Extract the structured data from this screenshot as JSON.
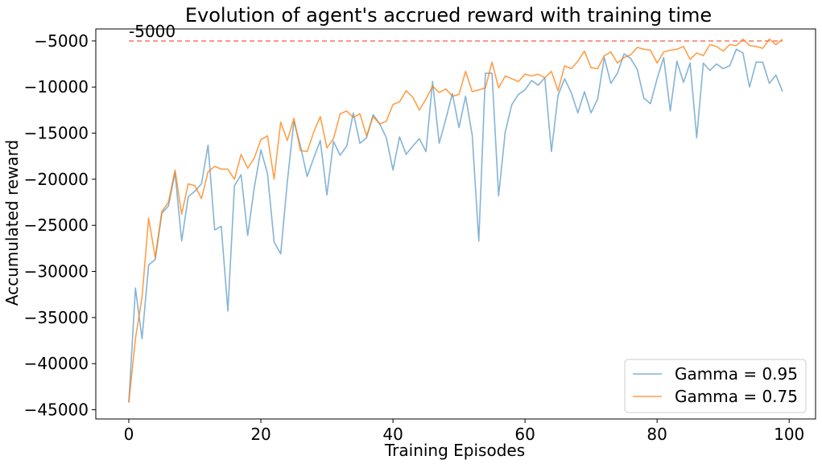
{
  "chart_data": {
    "type": "line",
    "title": "Evolution of agent's accrued reward with training time",
    "xlabel": "Training Episodes",
    "ylabel": "Accumulated reward",
    "xlim": [
      -5,
      104
    ],
    "ylim": [
      -46000,
      -3700
    ],
    "xticks": [
      0,
      20,
      40,
      60,
      80,
      100
    ],
    "yticks": [
      -45000,
      -40000,
      -35000,
      -30000,
      -25000,
      -20000,
      -15000,
      -10000,
      -5000
    ],
    "grid": false,
    "legend_position": "lower-right",
    "reference_line": {
      "y": -5000,
      "label": "-5000",
      "color": "#fa8072",
      "style": "dashed"
    },
    "series": [
      {
        "name": "Gamma = 0.95",
        "color": "#1f77b4",
        "x": [
          0,
          1,
          2,
          3,
          4,
          5,
          6,
          7,
          8,
          9,
          10,
          11,
          12,
          13,
          14,
          15,
          16,
          17,
          18,
          19,
          20,
          21,
          22,
          23,
          24,
          25,
          26,
          27,
          28,
          29,
          30,
          31,
          32,
          33,
          34,
          35,
          36,
          37,
          38,
          39,
          40,
          41,
          42,
          43,
          44,
          45,
          46,
          47,
          48,
          49,
          50,
          51,
          52,
          53,
          54,
          55,
          56,
          57,
          58,
          59,
          60,
          61,
          62,
          63,
          64,
          65,
          66,
          67,
          68,
          69,
          70,
          71,
          72,
          73,
          74,
          75,
          76,
          77,
          78,
          79,
          80,
          81,
          82,
          83,
          84,
          85,
          86,
          87,
          88,
          89,
          90,
          91,
          92,
          93,
          94,
          95,
          96,
          97,
          98,
          99
        ],
        "y": [
          -44200,
          -31800,
          -37300,
          -29300,
          -28700,
          -23700,
          -22900,
          -19300,
          -26700,
          -21900,
          -21300,
          -20500,
          -16300,
          -25500,
          -25100,
          -34300,
          -20700,
          -19500,
          -26100,
          -20900,
          -16800,
          -19400,
          -26800,
          -28100,
          -20300,
          -13700,
          -16400,
          -19700,
          -17700,
          -15800,
          -21700,
          -15900,
          -17400,
          -16400,
          -12800,
          -16100,
          -15500,
          -13000,
          -14000,
          -15500,
          -19000,
          -15400,
          -17300,
          -16400,
          -15600,
          -17000,
          -9400,
          -16100,
          -13500,
          -10700,
          -14400,
          -11000,
          -15200,
          -26700,
          -8500,
          -8500,
          -21800,
          -14900,
          -11900,
          -10800,
          -10300,
          -9300,
          -9800,
          -9000,
          -17000,
          -10900,
          -9100,
          -10600,
          -12800,
          -10500,
          -12800,
          -11300,
          -6800,
          -9600,
          -8500,
          -6400,
          -6900,
          -8100,
          -11200,
          -11800,
          -9100,
          -6800,
          -12600,
          -7200,
          -9500,
          -7400,
          -15500,
          -7400,
          -8200,
          -7500,
          -8000,
          -7700,
          -5900,
          -6300,
          -10000,
          -7300,
          -7300,
          -9600,
          -8700,
          -10500
        ]
      },
      {
        "name": "Gamma = 0.75",
        "color": "#ff7f0e",
        "x": [
          0,
          1,
          2,
          3,
          4,
          5,
          6,
          7,
          8,
          9,
          10,
          11,
          12,
          13,
          14,
          15,
          16,
          17,
          18,
          19,
          20,
          21,
          22,
          23,
          24,
          25,
          26,
          27,
          28,
          29,
          30,
          31,
          32,
          33,
          34,
          35,
          36,
          37,
          38,
          39,
          40,
          41,
          42,
          43,
          44,
          45,
          46,
          47,
          48,
          49,
          50,
          51,
          52,
          53,
          54,
          55,
          56,
          57,
          58,
          59,
          60,
          61,
          62,
          63,
          64,
          65,
          66,
          67,
          68,
          69,
          70,
          71,
          72,
          73,
          74,
          75,
          76,
          77,
          78,
          79,
          80,
          81,
          82,
          83,
          84,
          85,
          86,
          87,
          88,
          89,
          90,
          91,
          92,
          93,
          94,
          95,
          96,
          97,
          98,
          99
        ],
        "y": [
          -44200,
          -37300,
          -32800,
          -24200,
          -28500,
          -23500,
          -22500,
          -19000,
          -23800,
          -20500,
          -20700,
          -22100,
          -19200,
          -18600,
          -18900,
          -18900,
          -20000,
          -17300,
          -18800,
          -17700,
          -15700,
          -15300,
          -20000,
          -13800,
          -15800,
          -13400,
          -16900,
          -17000,
          -14900,
          -13200,
          -16600,
          -15600,
          -12900,
          -12600,
          -13300,
          -12900,
          -15300,
          -13200,
          -14000,
          -13700,
          -11900,
          -11600,
          -10400,
          -11100,
          -12500,
          -11300,
          -9900,
          -10600,
          -10200,
          -11000,
          -10800,
          -8300,
          -10500,
          -10300,
          -10100,
          -7300,
          -10100,
          -8800,
          -9100,
          -9400,
          -8600,
          -8800,
          -8600,
          -9000,
          -8300,
          -10400,
          -7700,
          -8000,
          -7200,
          -6100,
          -7900,
          -8000,
          -6600,
          -6200,
          -7400,
          -6800,
          -6500,
          -5700,
          -5900,
          -6000,
          -7400,
          -6200,
          -6000,
          -5900,
          -5600,
          -7000,
          -6300,
          -6600,
          -5400,
          -5600,
          -6100,
          -5400,
          -5500,
          -4800,
          -5500,
          -5600,
          -5800,
          -4800,
          -5400,
          -4800
        ]
      }
    ]
  }
}
